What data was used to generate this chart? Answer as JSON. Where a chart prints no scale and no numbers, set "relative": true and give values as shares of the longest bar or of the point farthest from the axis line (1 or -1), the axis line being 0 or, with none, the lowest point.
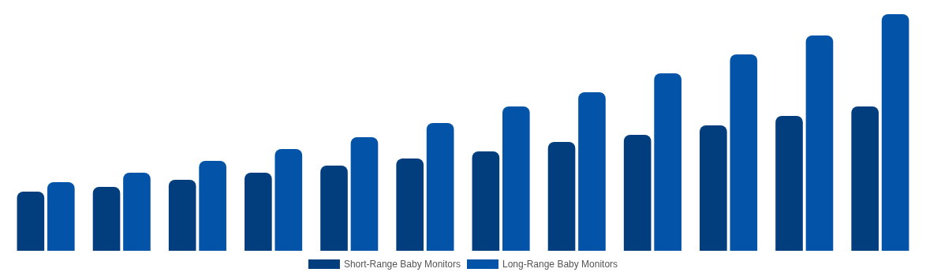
{
  "chart_data": {
    "type": "bar",
    "relative": true,
    "legend": "bottom",
    "categories": [
      null,
      null,
      null,
      null,
      null,
      null,
      null,
      null,
      null,
      null,
      null,
      null
    ],
    "series": [
      {
        "name": "Short-Range Baby Monitors",
        "color": "#023e7d",
        "values": [
          0.25,
          0.27,
          0.3,
          0.33,
          0.36,
          0.39,
          0.42,
          0.46,
          0.49,
          0.53,
          0.57,
          0.61
        ]
      },
      {
        "name": "Long-Range Baby Monitors",
        "color": "#0353a8",
        "values": [
          0.29,
          0.33,
          0.38,
          0.43,
          0.48,
          0.54,
          0.61,
          0.67,
          0.75,
          0.83,
          0.91,
          1
        ]
      }
    ]
  }
}
